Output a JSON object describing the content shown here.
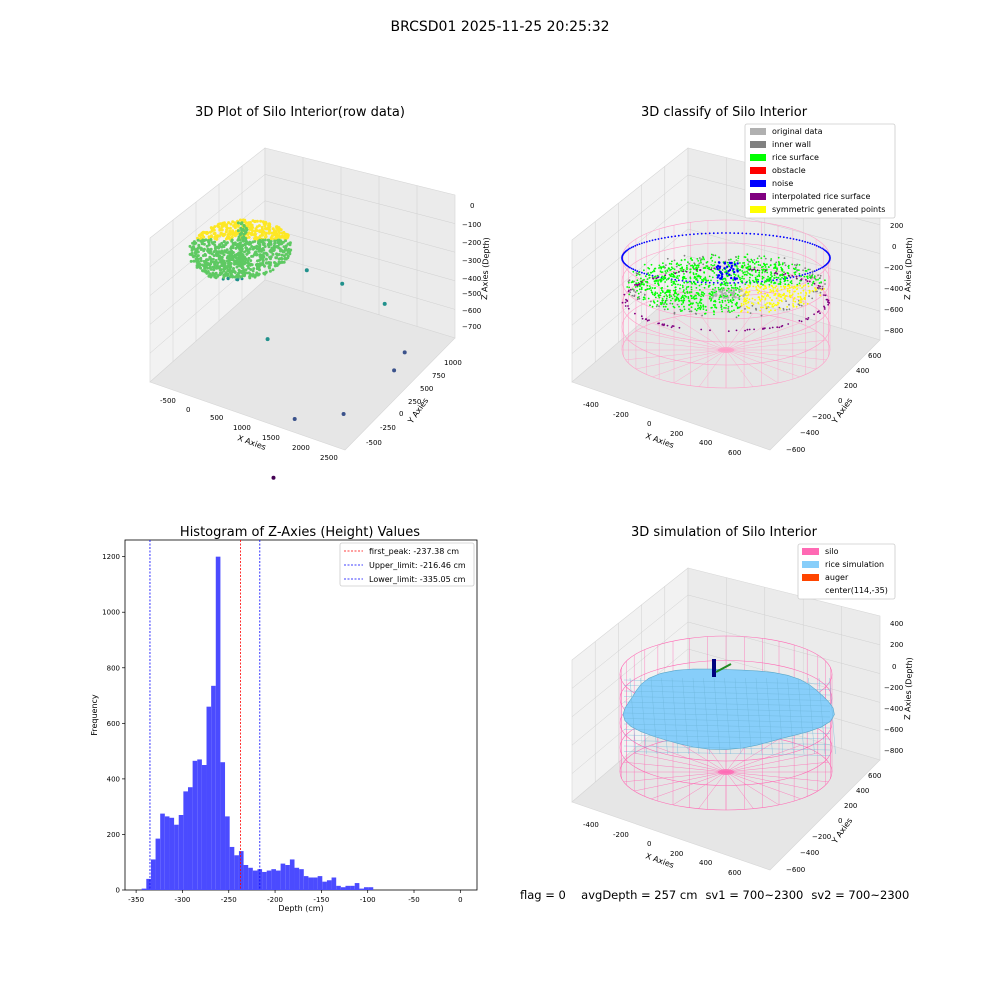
{
  "figure": {
    "suptitle": "BRCSD01 2025-11-25 20:25:32",
    "footer": {
      "flag": "flag = 0",
      "avg_depth": "avgDepth = 257 cm",
      "sv1": "sv1 = 700~2300",
      "sv2": "sv2 = 700~2300"
    }
  },
  "chart_data": [
    {
      "type": "scatter",
      "panel": "raw",
      "title": "3D Plot of Silo Interior(row data)",
      "xlabel": "X Axies",
      "ylabel": "Y Axies",
      "zlabel": "Z Axies (Depth)",
      "x_ticks": [
        "-500",
        "0",
        "500",
        "1000",
        "1500",
        "2000",
        "2500"
      ],
      "y_ticks": [
        "1000",
        "750",
        "500",
        "250",
        "0",
        "-250",
        "-500"
      ],
      "z_ticks": [
        "0",
        "−100",
        "−200",
        "−300",
        "−400",
        "−500",
        "−600",
        "−700"
      ],
      "colormap": [
        "#440154",
        "#3b528b",
        "#21918c",
        "#5ec962",
        "#fde725"
      ],
      "outlier_points": [
        {
          "x": 1100,
          "y": 600,
          "z": -60,
          "level": 0.5
        },
        {
          "x": 1400,
          "y": 800,
          "z": -150,
          "level": 0.55
        },
        {
          "x": 1900,
          "y": 950,
          "z": -230,
          "level": 0.5
        },
        {
          "x": 2400,
          "y": 850,
          "z": -380,
          "level": 0.35
        },
        {
          "x": 2450,
          "y": 700,
          "z": -420,
          "level": 0.35
        },
        {
          "x": 1200,
          "y": 100,
          "z": -250,
          "level": 0.5
        },
        {
          "x": 1900,
          "y": -50,
          "z": -520,
          "level": 0.25
        },
        {
          "x": 2200,
          "y": 300,
          "z": -560,
          "level": 0.2
        },
        {
          "x": 2000,
          "y": -350,
          "z": -720,
          "level": 0.1
        }
      ]
    },
    {
      "type": "scatter",
      "panel": "classify",
      "title": "3D classify of Silo Interior",
      "xlabel": "X Axies",
      "ylabel": "Y Axies",
      "zlabel": "Z Axies (Depth)",
      "x_ticks": [
        "-400",
        "-200",
        "0",
        "200",
        "400",
        "600"
      ],
      "y_ticks": [
        "600",
        "400",
        "200",
        "0",
        "−200",
        "−400",
        "−600"
      ],
      "z_ticks": [
        "200",
        "0",
        "−200",
        "−400",
        "−600",
        "−800"
      ],
      "legend_position": "top-right",
      "legend": [
        {
          "label": "original data",
          "color": "#b0b0b0"
        },
        {
          "label": "inner wall",
          "color": "#808080"
        },
        {
          "label": "rice surface",
          "color": "#00ff00"
        },
        {
          "label": "obstacle",
          "color": "#ff0000"
        },
        {
          "label": "noise",
          "color": "#0000ff"
        },
        {
          "label": "interpolated rice surface",
          "color": "#800080"
        },
        {
          "label": "symmetric generated points",
          "color": "#ffff00"
        }
      ]
    },
    {
      "type": "bar",
      "panel": "histogram",
      "title": "Histogram of Z-Axies (Height) Values",
      "xlabel": "Depth (cm)",
      "ylabel": "Frequency",
      "xlim": [
        -362,
        18
      ],
      "ylim": [
        0,
        1260
      ],
      "x_ticks": [
        -350,
        -300,
        -250,
        -200,
        -150,
        -100,
        -50,
        0
      ],
      "y_ticks": [
        0,
        200,
        400,
        600,
        800,
        1000,
        1200
      ],
      "bar_color": "#4b4bff",
      "bin_start": -344,
      "bin_width": 5,
      "values": [
        5,
        40,
        110,
        185,
        275,
        265,
        260,
        235,
        270,
        355,
        370,
        465,
        470,
        450,
        660,
        735,
        1200,
        460,
        265,
        155,
        125,
        140,
        90,
        80,
        70,
        75,
        65,
        70,
        75,
        70,
        95,
        90,
        110,
        80,
        75,
        50,
        45,
        45,
        50,
        30,
        35,
        45,
        15,
        10,
        15,
        15,
        25,
        5,
        10,
        10
      ],
      "legend_position": "top-right",
      "vlines": [
        {
          "label": "first_peak: -237.38 cm",
          "value": -237.38,
          "color": "#ff0000"
        },
        {
          "label": "Upper_limit: -216.46 cm",
          "value": -216.46,
          "color": "#0000ff"
        },
        {
          "label": "Lower_limit: -335.05 cm",
          "value": -335.05,
          "color": "#0000ff"
        }
      ]
    },
    {
      "type": "scatter",
      "panel": "simulation",
      "title": "3D simulation of Silo Interior",
      "xlabel": "X Axies",
      "ylabel": "Y Axies",
      "zlabel": "Z Axies (Depth)",
      "x_ticks": [
        "-400",
        "-200",
        "0",
        "200",
        "400",
        "600"
      ],
      "y_ticks": [
        "600",
        "400",
        "200",
        "0",
        "−200",
        "−400",
        "−600"
      ],
      "z_ticks": [
        "400",
        "200",
        "0",
        "−200",
        "−400",
        "−600",
        "−800"
      ],
      "legend_position": "top-right",
      "legend": [
        {
          "label": "silo",
          "color": "#ff69b4"
        },
        {
          "label": "rice simulation",
          "color": "#87cefa"
        },
        {
          "label": "auger",
          "color": "#ff4500"
        },
        {
          "label": "center(114,-35)",
          "color": ""
        }
      ]
    }
  ]
}
